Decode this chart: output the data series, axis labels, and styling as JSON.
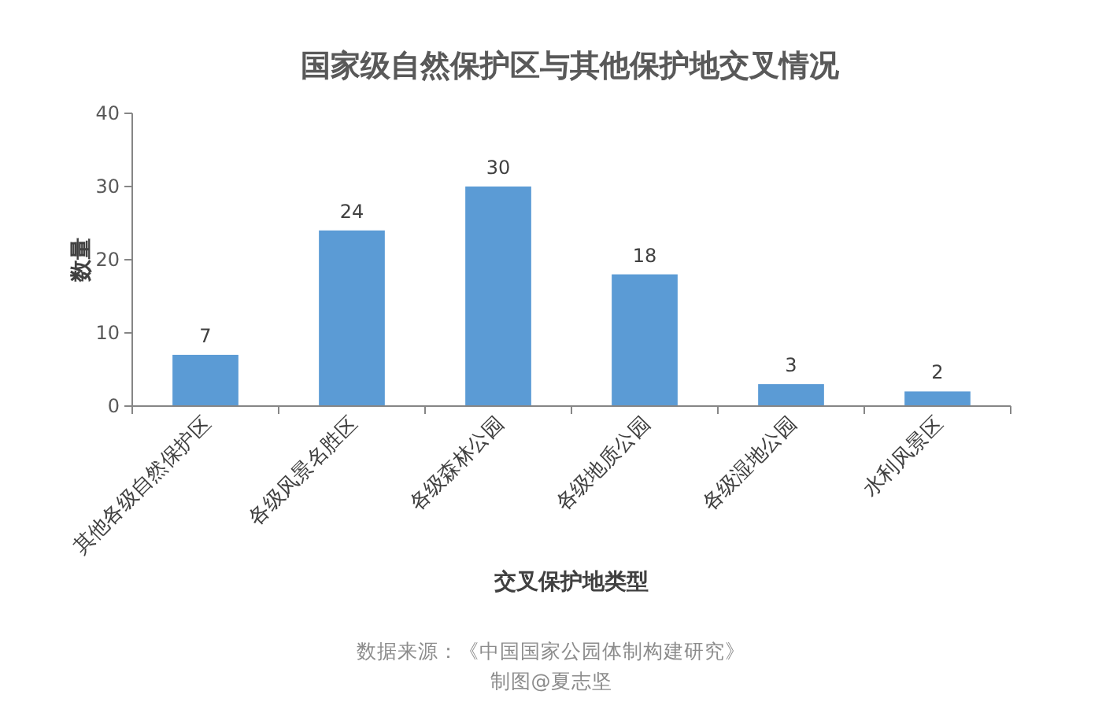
{
  "chart_data": {
    "type": "bar",
    "title": "国家级自然保护区与其他保护地交叉情况",
    "xlabel": "交叉保护地类型",
    "ylabel": "数量",
    "categories": [
      "其他各级自然保护区",
      "各级风景名胜区",
      "各级森林公园",
      "各级地质公园",
      "各级湿地公园",
      "水利风景区"
    ],
    "values": [
      7,
      24,
      30,
      18,
      3,
      2
    ],
    "color": "#5b9bd5",
    "ylim": [
      0,
      40
    ],
    "yticks": [
      0,
      10,
      20,
      30,
      40
    ],
    "data_labels": true,
    "grid": false,
    "annotations": [
      "数据来源：《中国国家公园体制构建研究》",
      "制图@夏志坚"
    ]
  }
}
